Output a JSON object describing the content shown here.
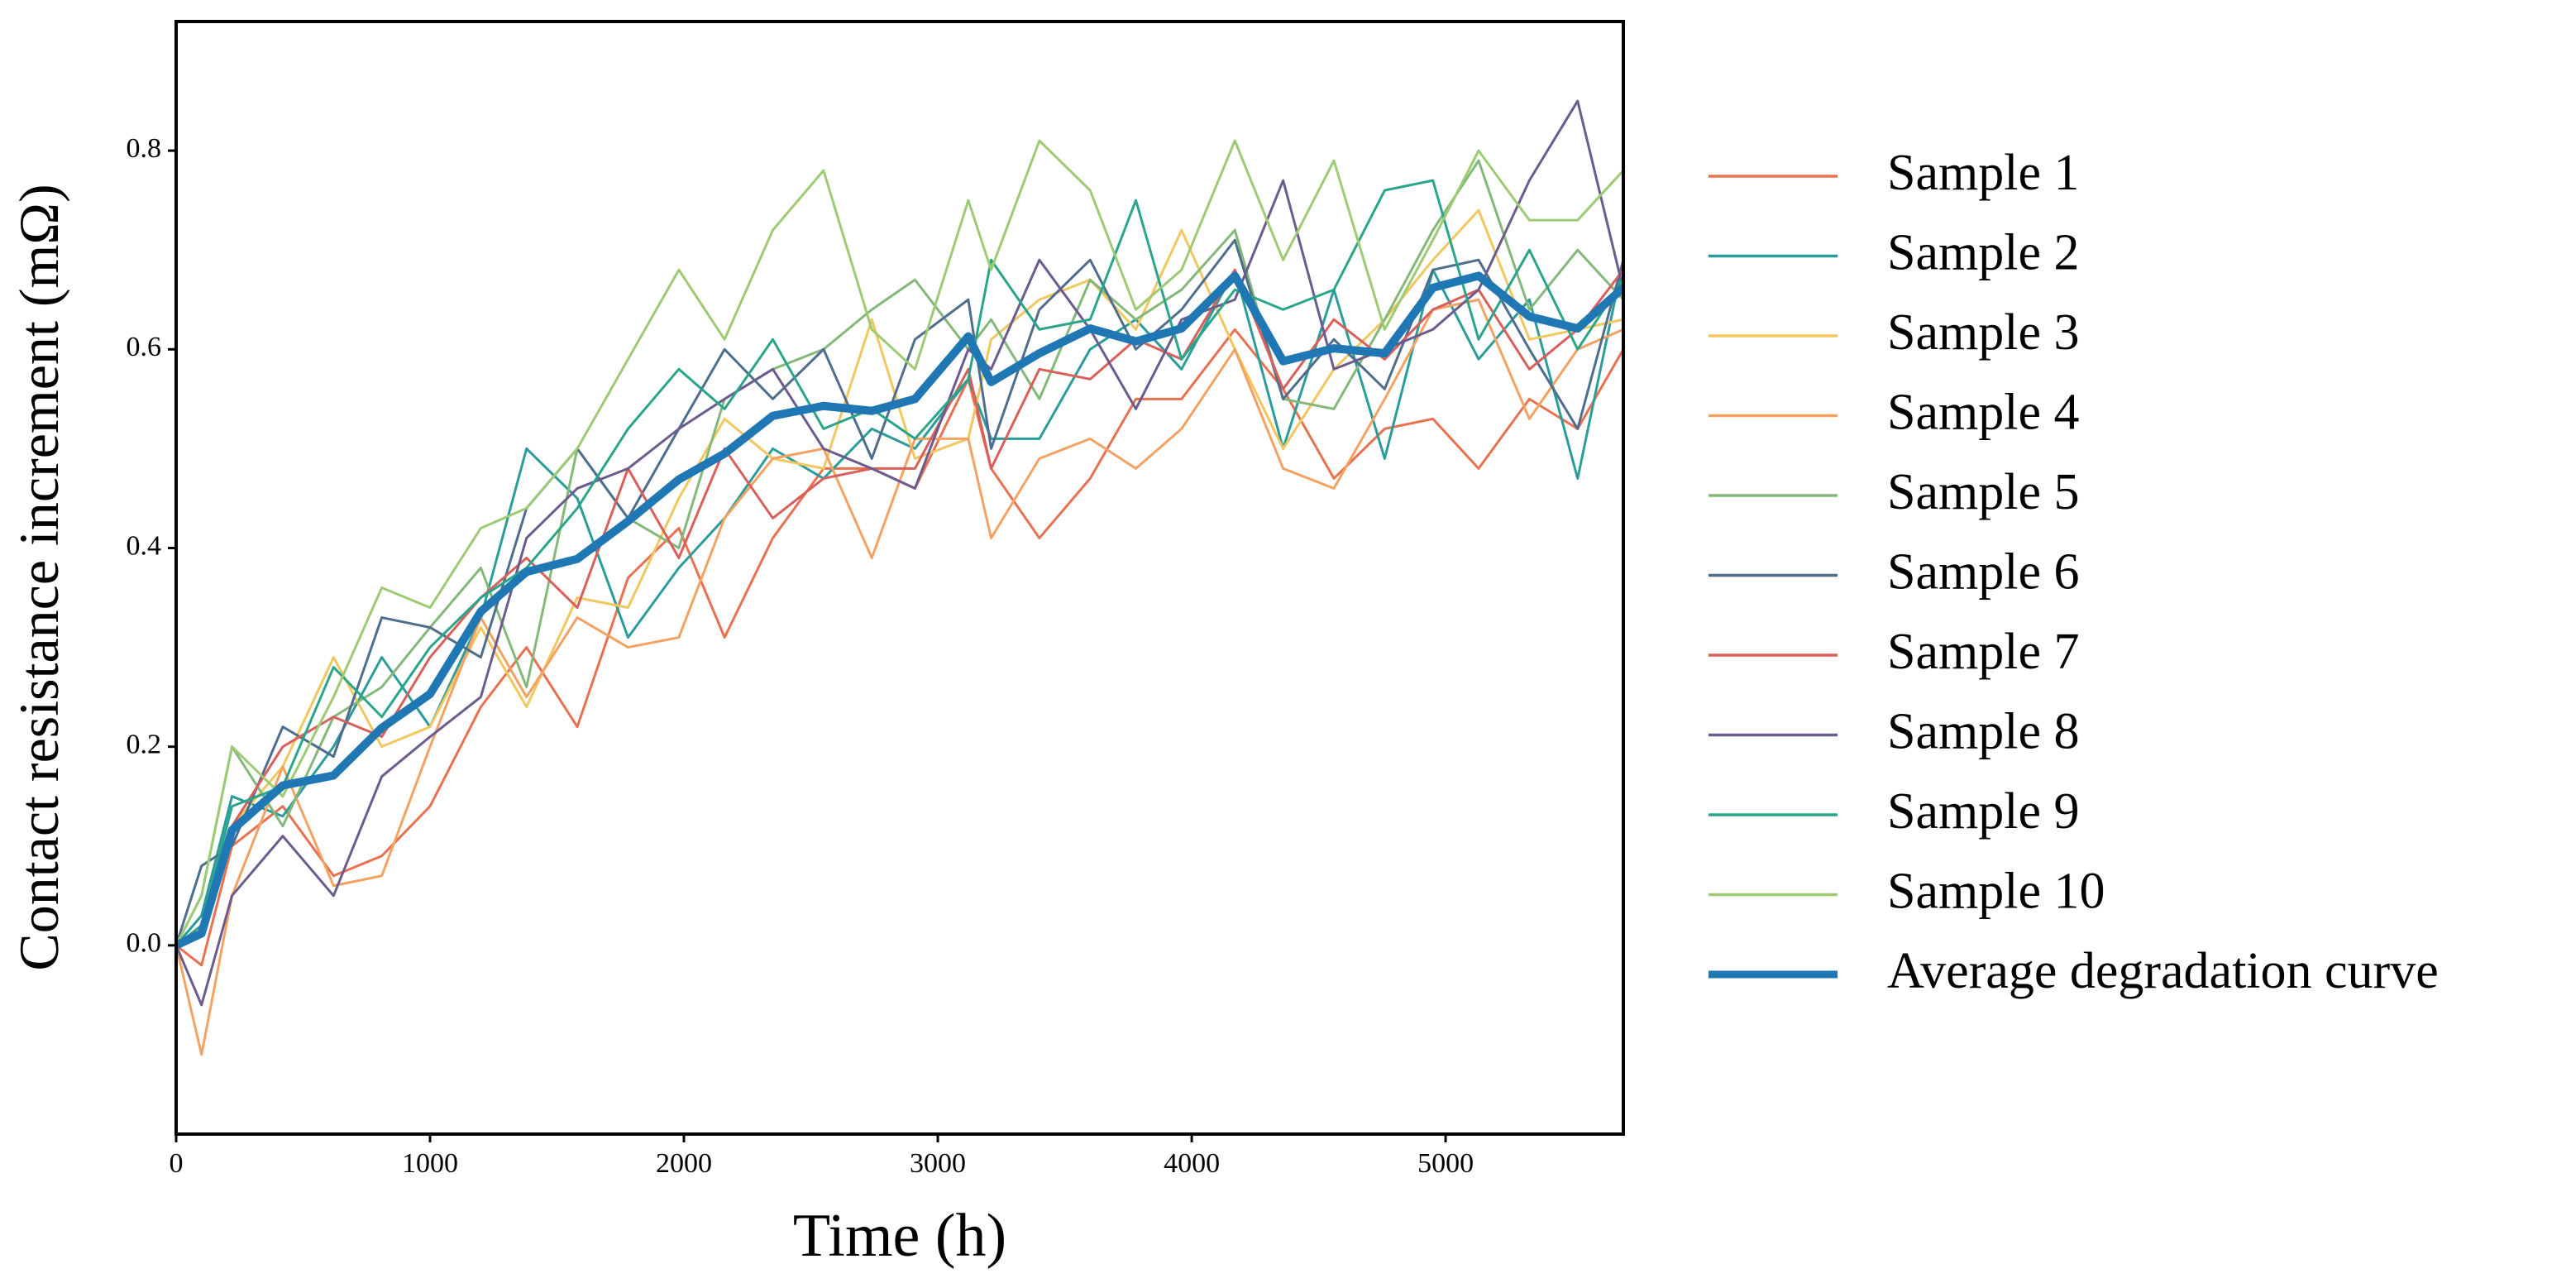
{
  "chart_data": {
    "type": "line",
    "x_label": "Time (h)",
    "y_label": "Contact resistance increment (mΩ)",
    "x": [
      0,
      100,
      220,
      420,
      620,
      810,
      1000,
      1200,
      1380,
      1580,
      1780,
      1980,
      2160,
      2350,
      2550,
      2740,
      2910,
      3120,
      3210,
      3400,
      3600,
      3780,
      3960,
      4170,
      4360,
      4560,
      4760,
      4950,
      5130,
      5330,
      5520,
      5700
    ],
    "xlim": [
      0,
      5700
    ],
    "xticks": [
      0,
      1000,
      2000,
      3000,
      4000,
      5000
    ],
    "ylim": [
      -0.19,
      0.93
    ],
    "yticks": [
      {
        "value": 0,
        "label": "0.0"
      },
      0.2,
      0.4,
      0.6,
      0.8
    ],
    "grid": false,
    "legend": "outside-right",
    "series": [
      {
        "name": "Sample 1",
        "color": "#e8714f",
        "width": 3,
        "values": [
          0,
          -0.02,
          0.1,
          0.14,
          0.07,
          0.09,
          0.14,
          0.24,
          0.3,
          0.22,
          0.37,
          0.42,
          0.31,
          0.41,
          0.48,
          0.48,
          0.46,
          0.57,
          0.48,
          0.41,
          0.47,
          0.55,
          0.55,
          0.62,
          0.56,
          0.47,
          0.52,
          0.53,
          0.48,
          0.55,
          0.52,
          0.6
        ]
      },
      {
        "name": "Sample 2",
        "color": "#2a9d9a",
        "width": 3,
        "values": [
          0,
          0.03,
          0.15,
          0.13,
          0.2,
          0.29,
          0.22,
          0.33,
          0.5,
          0.45,
          0.31,
          0.38,
          0.43,
          0.5,
          0.47,
          0.52,
          0.5,
          0.57,
          0.51,
          0.51,
          0.6,
          0.63,
          0.58,
          0.68,
          0.5,
          0.66,
          0.49,
          0.68,
          0.59,
          0.65,
          0.47,
          0.69
        ]
      },
      {
        "name": "Sample 3",
        "color": "#f1c75f",
        "width": 3,
        "values": [
          0,
          0.02,
          0.12,
          0.18,
          0.29,
          0.2,
          0.22,
          0.32,
          0.24,
          0.35,
          0.34,
          0.45,
          0.53,
          0.49,
          0.48,
          0.63,
          0.49,
          0.51,
          0.61,
          0.65,
          0.67,
          0.62,
          0.72,
          0.6,
          0.5,
          0.58,
          0.63,
          0.69,
          0.74,
          0.61,
          0.62,
          0.63
        ]
      },
      {
        "name": "Sample 4",
        "color": "#f4a261",
        "width": 3,
        "values": [
          0,
          -0.11,
          0.05,
          0.18,
          0.06,
          0.07,
          0.2,
          0.33,
          0.25,
          0.33,
          0.3,
          0.31,
          0.43,
          0.49,
          0.5,
          0.39,
          0.51,
          0.51,
          0.41,
          0.49,
          0.51,
          0.48,
          0.52,
          0.6,
          0.48,
          0.46,
          0.55,
          0.64,
          0.65,
          0.53,
          0.6,
          0.62
        ]
      },
      {
        "name": "Sample 5",
        "color": "#84b878",
        "width": 3,
        "values": [
          0,
          0.05,
          0.2,
          0.12,
          0.23,
          0.26,
          0.32,
          0.38,
          0.26,
          0.5,
          0.43,
          0.4,
          0.55,
          0.58,
          0.6,
          0.64,
          0.67,
          0.6,
          0.63,
          0.55,
          0.67,
          0.63,
          0.66,
          0.72,
          0.55,
          0.54,
          0.63,
          0.72,
          0.79,
          0.64,
          0.7,
          0.65
        ]
      },
      {
        "name": "Sample 6",
        "color": "#4f6d8c",
        "width": 3,
        "values": [
          0,
          0.08,
          0.1,
          0.22,
          0.19,
          0.33,
          0.32,
          0.29,
          0.44,
          0.5,
          0.43,
          0.52,
          0.6,
          0.55,
          0.6,
          0.49,
          0.61,
          0.65,
          0.5,
          0.64,
          0.69,
          0.6,
          0.64,
          0.71,
          0.55,
          0.61,
          0.56,
          0.68,
          0.69,
          0.6,
          0.52,
          0.69
        ]
      },
      {
        "name": "Sample 7",
        "color": "#d95f5a",
        "width": 3,
        "values": [
          0,
          0.01,
          0.12,
          0.2,
          0.23,
          0.21,
          0.29,
          0.35,
          0.39,
          0.34,
          0.48,
          0.39,
          0.5,
          0.43,
          0.47,
          0.48,
          0.48,
          0.58,
          0.48,
          0.58,
          0.57,
          0.61,
          0.59,
          0.68,
          0.56,
          0.63,
          0.59,
          0.64,
          0.66,
          0.58,
          0.62,
          0.68
        ]
      },
      {
        "name": "Sample 8",
        "color": "#6b5b8e",
        "width": 3,
        "values": [
          0,
          -0.06,
          0.05,
          0.11,
          0.05,
          0.17,
          0.21,
          0.25,
          0.41,
          0.46,
          0.48,
          0.52,
          0.55,
          0.58,
          0.5,
          0.48,
          0.46,
          0.6,
          0.58,
          0.69,
          0.62,
          0.54,
          0.63,
          0.65,
          0.77,
          0.58,
          0.6,
          0.62,
          0.66,
          0.77,
          0.85,
          0.66
        ]
      },
      {
        "name": "Sample 9",
        "color": "#2aa58a",
        "width": 3,
        "values": [
          0,
          0.02,
          0.14,
          0.16,
          0.28,
          0.23,
          0.3,
          0.35,
          0.38,
          0.44,
          0.52,
          0.58,
          0.54,
          0.61,
          0.52,
          0.54,
          0.51,
          0.57,
          0.69,
          0.62,
          0.63,
          0.75,
          0.59,
          0.66,
          0.64,
          0.66,
          0.76,
          0.77,
          0.61,
          0.7,
          0.6,
          0.67
        ]
      },
      {
        "name": "Sample 10",
        "color": "#9ccb74",
        "width": 3,
        "values": [
          0,
          0.05,
          0.2,
          0.15,
          0.25,
          0.36,
          0.34,
          0.42,
          0.44,
          0.5,
          0.59,
          0.68,
          0.61,
          0.72,
          0.78,
          0.62,
          0.58,
          0.75,
          0.68,
          0.81,
          0.76,
          0.64,
          0.68,
          0.81,
          0.69,
          0.79,
          0.62,
          0.71,
          0.8,
          0.73,
          0.73,
          0.78
        ]
      },
      {
        "name": "Average degradation curve",
        "color": "#1f77b4",
        "width": 10,
        "values": [
          0,
          0.012,
          0.116,
          0.161,
          0.171,
          0.219,
          0.253,
          0.336,
          0.376,
          0.389,
          0.427,
          0.469,
          0.495,
          0.533,
          0.543,
          0.538,
          0.55,
          0.613,
          0.567,
          0.596,
          0.621,
          0.608,
          0.621,
          0.674,
          0.588,
          0.601,
          0.596,
          0.662,
          0.674,
          0.633,
          0.621,
          0.662
        ]
      }
    ]
  }
}
